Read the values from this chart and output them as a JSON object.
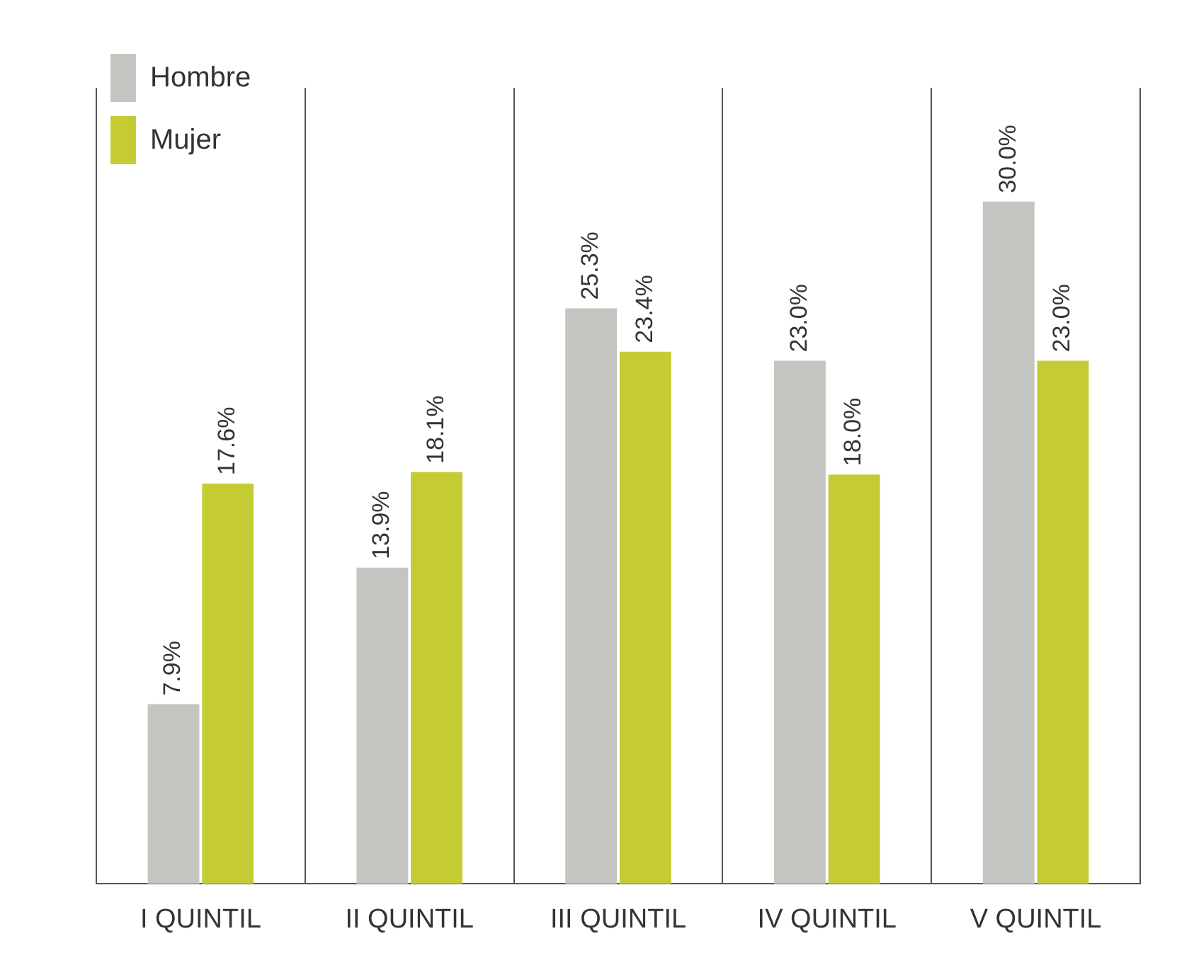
{
  "chart_data": {
    "type": "bar",
    "categories": [
      "I QUINTIL",
      "II QUINTIL",
      "III QUINTIL",
      "IV QUINTIL",
      "V QUINTIL"
    ],
    "series": [
      {
        "name": "Hombre",
        "color": "#c4c5c0",
        "values": [
          7.9,
          13.9,
          25.3,
          23.0,
          30.0
        ],
        "value_labels": [
          "7.9%",
          "13.9%",
          "25.3%",
          "23.0%",
          "30.0%"
        ]
      },
      {
        "name": "Mujer",
        "color": "#c5cc33",
        "values": [
          17.6,
          18.1,
          23.4,
          18.0,
          23.0
        ],
        "value_labels": [
          "17.6%",
          "18.1%",
          "23.4%",
          "18.0%",
          "23.0%"
        ]
      }
    ],
    "ylim": [
      0,
      35
    ],
    "tick_labels": "x",
    "grid": "x",
    "legend": "top left"
  }
}
